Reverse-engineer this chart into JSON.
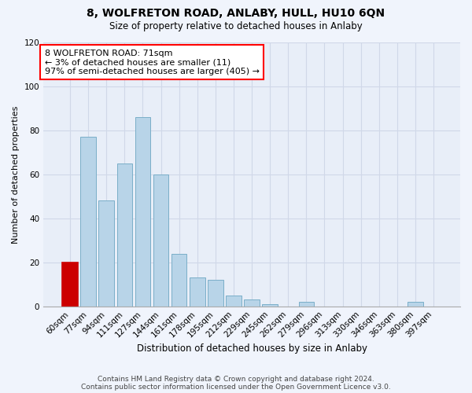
{
  "title": "8, WOLFRETON ROAD, ANLABY, HULL, HU10 6QN",
  "subtitle": "Size of property relative to detached houses in Anlaby",
  "xlabel": "Distribution of detached houses by size in Anlaby",
  "ylabel": "Number of detached properties",
  "categories": [
    "60sqm",
    "77sqm",
    "94sqm",
    "111sqm",
    "127sqm",
    "144sqm",
    "161sqm",
    "178sqm",
    "195sqm",
    "212sqm",
    "229sqm",
    "245sqm",
    "262sqm",
    "279sqm",
    "296sqm",
    "313sqm",
    "330sqm",
    "346sqm",
    "363sqm",
    "380sqm",
    "397sqm"
  ],
  "values": [
    20,
    77,
    48,
    65,
    86,
    60,
    24,
    13,
    12,
    5,
    3,
    1,
    0,
    2,
    0,
    0,
    0,
    0,
    0,
    2,
    0
  ],
  "bar_color": "#b8d4e8",
  "highlight_bar_index": 0,
  "highlight_bar_color": "#cc0000",
  "highlight_bar_edge_color": "#cc0000",
  "normal_bar_edge_color": "#7aaec8",
  "ylim": [
    0,
    120
  ],
  "yticks": [
    0,
    20,
    40,
    60,
    80,
    100,
    120
  ],
  "annotation_box_text": "8 WOLFRETON ROAD: 71sqm\n← 3% of detached houses are smaller (11)\n97% of semi-detached houses are larger (405) →",
  "footer_line1": "Contains HM Land Registry data © Crown copyright and database right 2024.",
  "footer_line2": "Contains public sector information licensed under the Open Government Licence v3.0.",
  "plot_bg_color": "#e8eef8",
  "fig_bg_color": "#f0f4fc",
  "grid_color": "#d0d8e8",
  "title_fontsize": 10,
  "subtitle_fontsize": 8.5,
  "xlabel_fontsize": 8.5,
  "ylabel_fontsize": 8,
  "tick_fontsize": 7.5,
  "annot_fontsize": 8,
  "footer_fontsize": 6.5
}
